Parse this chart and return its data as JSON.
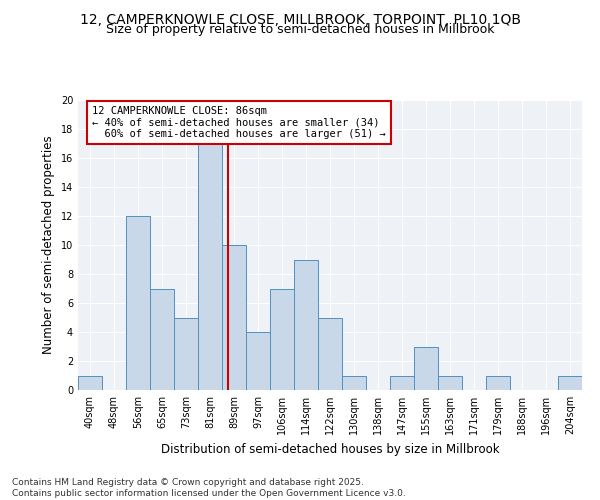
{
  "title_line1": "12, CAMPERKNOWLE CLOSE, MILLBROOK, TORPOINT, PL10 1QB",
  "title_line2": "Size of property relative to semi-detached houses in Millbrook",
  "xlabel": "Distribution of semi-detached houses by size in Millbrook",
  "ylabel": "Number of semi-detached properties",
  "bin_labels": [
    "40sqm",
    "48sqm",
    "56sqm",
    "65sqm",
    "73sqm",
    "81sqm",
    "89sqm",
    "97sqm",
    "106sqm",
    "114sqm",
    "122sqm",
    "130sqm",
    "138sqm",
    "147sqm",
    "155sqm",
    "163sqm",
    "171sqm",
    "179sqm",
    "188sqm",
    "196sqm",
    "204sqm"
  ],
  "bar_heights": [
    1,
    0,
    12,
    7,
    5,
    17,
    10,
    4,
    7,
    9,
    5,
    1,
    0,
    1,
    3,
    1,
    0,
    1,
    0,
    0,
    1
  ],
  "bar_color": "#c8d8e8",
  "bar_edge_color": "#5090c0",
  "vline_x": 5.75,
  "vline_color": "#cc0000",
  "annotation_text": "12 CAMPERKNOWLE CLOSE: 86sqm\n← 40% of semi-detached houses are smaller (34)\n  60% of semi-detached houses are larger (51) →",
  "annotation_box_color": "#ffffff",
  "annotation_box_edge_color": "#cc0000",
  "ylim": [
    0,
    20
  ],
  "yticks": [
    0,
    2,
    4,
    6,
    8,
    10,
    12,
    14,
    16,
    18,
    20
  ],
  "footer_text": "Contains HM Land Registry data © Crown copyright and database right 2025.\nContains public sector information licensed under the Open Government Licence v3.0.",
  "background_color": "#eef2f7",
  "grid_color": "#ffffff",
  "title_fontsize": 10,
  "subtitle_fontsize": 9,
  "axis_label_fontsize": 8.5,
  "tick_fontsize": 7,
  "annotation_fontsize": 7.5,
  "footer_fontsize": 6.5
}
